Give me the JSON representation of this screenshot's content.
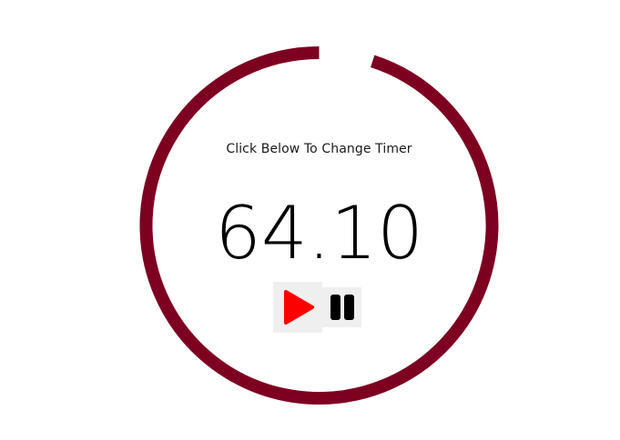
{
  "timer": {
    "hint": "Click Below To Change Timer",
    "display": "64.10",
    "progress_fraction": 0.95
  },
  "controls": {
    "play_icon": "play-icon",
    "pause_icon": "pause-icon"
  },
  "colors": {
    "ring": "#7d0020",
    "play": "#ff0000",
    "pause": "#000000",
    "button_bg": "#efefef"
  }
}
